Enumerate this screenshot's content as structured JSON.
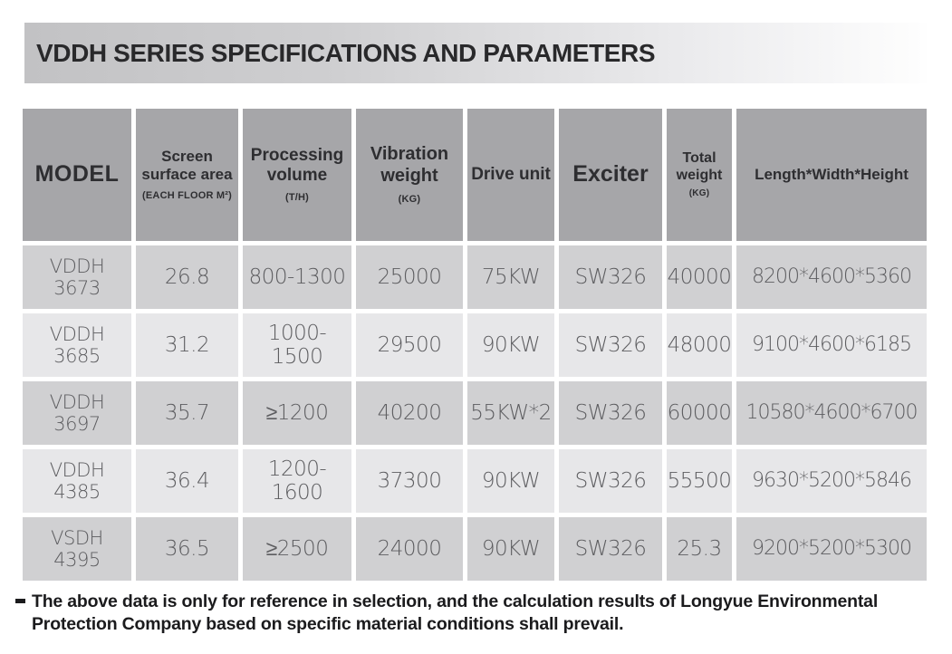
{
  "title": "VDDH SERIES SPECIFICATIONS AND PARAMETERS",
  "table": {
    "columns": [
      {
        "title": "MODEL",
        "sub": ""
      },
      {
        "title": "Screen surface area",
        "sub": "(EACH FLOOR M²)"
      },
      {
        "title": "Processing volume",
        "sub": "(T/H)"
      },
      {
        "title": "Vibration weight",
        "sub": "(KG)"
      },
      {
        "title": "Drive unit",
        "sub": ""
      },
      {
        "title": "Exciter",
        "sub": ""
      },
      {
        "title": "Total weight",
        "sub": "(KG)"
      },
      {
        "title": "Length*Width*Height",
        "sub": ""
      }
    ],
    "rows": [
      [
        "VDDH\n3673",
        "26.8",
        "800-1300",
        "25000",
        "75KW",
        "SW326",
        "40000",
        "8200*4600*5360"
      ],
      [
        "VDDH\n3685",
        "31.2",
        "1000-1500",
        "29500",
        "90KW",
        "SW326",
        "48000",
        "9100*4600*6185"
      ],
      [
        "VDDH\n3697",
        "35.7",
        "≥1200",
        "40200",
        "55KW*2",
        "SW326",
        "60000",
        "10580*4600*6700"
      ],
      [
        "VDDH\n4385",
        "36.4",
        "1200-1600",
        "37300",
        "90KW",
        "SW326",
        "55500",
        "9630*5200*5846"
      ],
      [
        "VSDH\n4395",
        "36.5",
        "≥2500",
        "24000",
        "90KW",
        "SW326",
        "25.3",
        "9200*5200*5300"
      ]
    ]
  },
  "footnote": "The above data is only for reference in selection, and the calculation results of Longyue Environmental Protection Company based on specific material conditions shall prevail.",
  "colors": {
    "header-bg": "#a6a6a9",
    "row-odd": "#d0d0d2",
    "row-even": "#e7e7e9",
    "header-text": "#2e2e31",
    "cell-text": "#5d5d60",
    "title-text": "#29292b",
    "foot-text": "#1b1b1d"
  }
}
